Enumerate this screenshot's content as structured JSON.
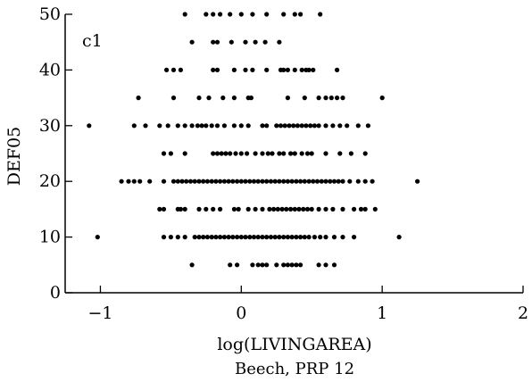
{
  "chart_data": {
    "type": "scatter",
    "panel_label": "c1",
    "xlabel": "log(LIVINGAREA)",
    "ylabel": "DEF05",
    "caption": "Beech, PRP 12",
    "xlim": [
      -1.25,
      2.0
    ],
    "ylim": [
      0,
      50
    ],
    "x_ticks": [
      -1,
      0,
      1,
      2
    ],
    "x_tick_labels": [
      "−1",
      "0",
      "1",
      "2"
    ],
    "y_ticks": [
      0,
      10,
      20,
      30,
      40,
      50
    ],
    "y_tick_labels": [
      "0",
      "10",
      "20",
      "30",
      "40",
      "50"
    ],
    "grid": false,
    "marker_color": "#000000",
    "series": [
      {
        "points": [
          [
            -0.4,
            50
          ],
          [
            -0.25,
            50
          ],
          [
            -0.2,
            50
          ],
          [
            -0.15,
            50
          ],
          [
            -0.08,
            50
          ],
          [
            0.0,
            50
          ],
          [
            0.08,
            50
          ],
          [
            0.18,
            50
          ],
          [
            0.3,
            50
          ],
          [
            0.38,
            50
          ],
          [
            0.42,
            50
          ],
          [
            0.56,
            50
          ],
          [
            -0.35,
            45
          ],
          [
            -0.2,
            45
          ],
          [
            -0.17,
            45
          ],
          [
            -0.07,
            45
          ],
          [
            0.03,
            45
          ],
          [
            0.1,
            45
          ],
          [
            0.17,
            45
          ],
          [
            0.27,
            45
          ],
          [
            -0.53,
            40
          ],
          [
            -0.48,
            40
          ],
          [
            -0.43,
            40
          ],
          [
            -0.2,
            40
          ],
          [
            -0.17,
            40
          ],
          [
            -0.05,
            40
          ],
          [
            0.03,
            40
          ],
          [
            0.08,
            40
          ],
          [
            0.18,
            40
          ],
          [
            0.28,
            40
          ],
          [
            0.3,
            40
          ],
          [
            0.33,
            40
          ],
          [
            0.38,
            40
          ],
          [
            0.43,
            40
          ],
          [
            0.46,
            40
          ],
          [
            0.48,
            40
          ],
          [
            0.51,
            40
          ],
          [
            0.68,
            40
          ],
          [
            -0.73,
            35
          ],
          [
            -0.48,
            35
          ],
          [
            -0.3,
            35
          ],
          [
            -0.23,
            35
          ],
          [
            -0.13,
            35
          ],
          [
            -0.05,
            35
          ],
          [
            0.05,
            35
          ],
          [
            0.07,
            35
          ],
          [
            0.33,
            35
          ],
          [
            0.45,
            35
          ],
          [
            0.55,
            35
          ],
          [
            0.6,
            35
          ],
          [
            0.64,
            35
          ],
          [
            0.68,
            35
          ],
          [
            0.72,
            35
          ],
          [
            1.0,
            35
          ],
          [
            -1.08,
            30
          ],
          [
            -0.76,
            30
          ],
          [
            -0.68,
            30
          ],
          [
            -0.58,
            30
          ],
          [
            -0.52,
            30
          ],
          [
            -0.45,
            30
          ],
          [
            -0.4,
            30
          ],
          [
            -0.35,
            30
          ],
          [
            -0.31,
            30
          ],
          [
            -0.28,
            30
          ],
          [
            -0.25,
            30
          ],
          [
            -0.21,
            30
          ],
          [
            -0.17,
            30
          ],
          [
            -0.12,
            30
          ],
          [
            -0.05,
            30
          ],
          [
            0.0,
            30
          ],
          [
            0.05,
            30
          ],
          [
            0.15,
            30
          ],
          [
            0.18,
            30
          ],
          [
            0.25,
            30
          ],
          [
            0.28,
            30
          ],
          [
            0.31,
            30
          ],
          [
            0.34,
            30
          ],
          [
            0.37,
            30
          ],
          [
            0.4,
            30
          ],
          [
            0.43,
            30
          ],
          [
            0.46,
            30
          ],
          [
            0.49,
            30
          ],
          [
            0.52,
            30
          ],
          [
            0.55,
            30
          ],
          [
            0.6,
            30
          ],
          [
            0.65,
            30
          ],
          [
            0.7,
            30
          ],
          [
            0.75,
            30
          ],
          [
            0.83,
            30
          ],
          [
            0.9,
            30
          ],
          [
            -0.55,
            25
          ],
          [
            -0.5,
            25
          ],
          [
            -0.4,
            25
          ],
          [
            -0.2,
            25
          ],
          [
            -0.17,
            25
          ],
          [
            -0.14,
            25
          ],
          [
            -0.11,
            25
          ],
          [
            -0.08,
            25
          ],
          [
            -0.04,
            25
          ],
          [
            0.0,
            25
          ],
          [
            0.04,
            25
          ],
          [
            0.1,
            25
          ],
          [
            0.15,
            25
          ],
          [
            0.19,
            25
          ],
          [
            0.22,
            25
          ],
          [
            0.27,
            25
          ],
          [
            0.3,
            25
          ],
          [
            0.35,
            25
          ],
          [
            0.38,
            25
          ],
          [
            0.43,
            25
          ],
          [
            0.47,
            25
          ],
          [
            0.5,
            25
          ],
          [
            0.6,
            25
          ],
          [
            0.7,
            25
          ],
          [
            0.78,
            25
          ],
          [
            0.88,
            25
          ],
          [
            -0.85,
            20
          ],
          [
            -0.8,
            20
          ],
          [
            -0.76,
            20
          ],
          [
            -0.72,
            20
          ],
          [
            -0.65,
            20
          ],
          [
            -0.55,
            20
          ],
          [
            -0.48,
            20
          ],
          [
            -0.45,
            20
          ],
          [
            -0.42,
            20
          ],
          [
            -0.39,
            20
          ],
          [
            -0.36,
            20
          ],
          [
            -0.33,
            20
          ],
          [
            -0.3,
            20
          ],
          [
            -0.27,
            20
          ],
          [
            -0.24,
            20
          ],
          [
            -0.21,
            20
          ],
          [
            -0.18,
            20
          ],
          [
            -0.15,
            20
          ],
          [
            -0.12,
            20
          ],
          [
            -0.09,
            20
          ],
          [
            -0.06,
            20
          ],
          [
            -0.03,
            20
          ],
          [
            0.0,
            20
          ],
          [
            0.03,
            20
          ],
          [
            0.06,
            20
          ],
          [
            0.09,
            20
          ],
          [
            0.12,
            20
          ],
          [
            0.15,
            20
          ],
          [
            0.18,
            20
          ],
          [
            0.21,
            20
          ],
          [
            0.24,
            20
          ],
          [
            0.27,
            20
          ],
          [
            0.3,
            20
          ],
          [
            0.33,
            20
          ],
          [
            0.36,
            20
          ],
          [
            0.39,
            20
          ],
          [
            0.42,
            20
          ],
          [
            0.45,
            20
          ],
          [
            0.48,
            20
          ],
          [
            0.51,
            20
          ],
          [
            0.54,
            20
          ],
          [
            0.57,
            20
          ],
          [
            0.6,
            20
          ],
          [
            0.63,
            20
          ],
          [
            0.66,
            20
          ],
          [
            0.69,
            20
          ],
          [
            0.72,
            20
          ],
          [
            0.77,
            20
          ],
          [
            0.83,
            20
          ],
          [
            0.88,
            20
          ],
          [
            0.93,
            20
          ],
          [
            1.25,
            20
          ],
          [
            -0.58,
            15
          ],
          [
            -0.55,
            15
          ],
          [
            -0.45,
            15
          ],
          [
            -0.43,
            15
          ],
          [
            -0.4,
            15
          ],
          [
            -0.3,
            15
          ],
          [
            -0.25,
            15
          ],
          [
            -0.2,
            15
          ],
          [
            -0.15,
            15
          ],
          [
            -0.05,
            15
          ],
          [
            -0.02,
            15
          ],
          [
            0.05,
            15
          ],
          [
            0.1,
            15
          ],
          [
            0.15,
            15
          ],
          [
            0.2,
            15
          ],
          [
            0.23,
            15
          ],
          [
            0.26,
            15
          ],
          [
            0.29,
            15
          ],
          [
            0.32,
            15
          ],
          [
            0.35,
            15
          ],
          [
            0.38,
            15
          ],
          [
            0.41,
            15
          ],
          [
            0.44,
            15
          ],
          [
            0.47,
            15
          ],
          [
            0.5,
            15
          ],
          [
            0.55,
            15
          ],
          [
            0.6,
            15
          ],
          [
            0.65,
            15
          ],
          [
            0.72,
            15
          ],
          [
            0.8,
            15
          ],
          [
            0.85,
            15
          ],
          [
            0.88,
            15
          ],
          [
            0.95,
            15
          ],
          [
            -1.02,
            10
          ],
          [
            -0.55,
            10
          ],
          [
            -0.5,
            10
          ],
          [
            -0.45,
            10
          ],
          [
            -0.4,
            10
          ],
          [
            -0.33,
            10
          ],
          [
            -0.3,
            10
          ],
          [
            -0.27,
            10
          ],
          [
            -0.24,
            10
          ],
          [
            -0.21,
            10
          ],
          [
            -0.18,
            10
          ],
          [
            -0.15,
            10
          ],
          [
            -0.12,
            10
          ],
          [
            -0.09,
            10
          ],
          [
            -0.06,
            10
          ],
          [
            -0.03,
            10
          ],
          [
            0.0,
            10
          ],
          [
            0.03,
            10
          ],
          [
            0.06,
            10
          ],
          [
            0.09,
            10
          ],
          [
            0.12,
            10
          ],
          [
            0.15,
            10
          ],
          [
            0.18,
            10
          ],
          [
            0.21,
            10
          ],
          [
            0.24,
            10
          ],
          [
            0.27,
            10
          ],
          [
            0.3,
            10
          ],
          [
            0.33,
            10
          ],
          [
            0.36,
            10
          ],
          [
            0.39,
            10
          ],
          [
            0.42,
            10
          ],
          [
            0.45,
            10
          ],
          [
            0.48,
            10
          ],
          [
            0.52,
            10
          ],
          [
            0.56,
            10
          ],
          [
            0.6,
            10
          ],
          [
            0.66,
            10
          ],
          [
            0.72,
            10
          ],
          [
            0.8,
            10
          ],
          [
            1.12,
            10
          ],
          [
            -0.35,
            5
          ],
          [
            -0.08,
            5
          ],
          [
            -0.03,
            5
          ],
          [
            0.08,
            5
          ],
          [
            0.12,
            5
          ],
          [
            0.15,
            5
          ],
          [
            0.18,
            5
          ],
          [
            0.25,
            5
          ],
          [
            0.3,
            5
          ],
          [
            0.33,
            5
          ],
          [
            0.36,
            5
          ],
          [
            0.39,
            5
          ],
          [
            0.42,
            5
          ],
          [
            0.55,
            5
          ],
          [
            0.6,
            5
          ],
          [
            0.66,
            5
          ]
        ]
      }
    ]
  }
}
